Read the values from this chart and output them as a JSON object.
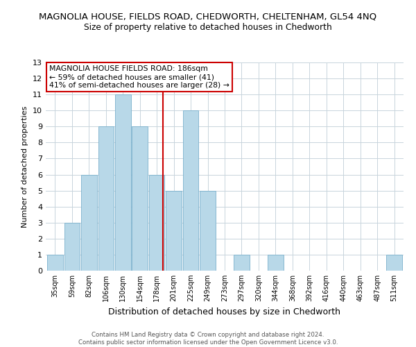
{
  "title": "MAGNOLIA HOUSE, FIELDS ROAD, CHEDWORTH, CHELTENHAM, GL54 4NQ",
  "subtitle": "Size of property relative to detached houses in Chedworth",
  "xlabel": "Distribution of detached houses by size in Chedworth",
  "ylabel": "Number of detached properties",
  "bin_labels": [
    "35sqm",
    "59sqm",
    "82sqm",
    "106sqm",
    "130sqm",
    "154sqm",
    "178sqm",
    "201sqm",
    "225sqm",
    "249sqm",
    "273sqm",
    "297sqm",
    "320sqm",
    "344sqm",
    "368sqm",
    "392sqm",
    "416sqm",
    "440sqm",
    "463sqm",
    "487sqm",
    "511sqm"
  ],
  "bar_counts": [
    1,
    3,
    6,
    9,
    11,
    9,
    6,
    5,
    10,
    5,
    0,
    1,
    0,
    1,
    0,
    0,
    0,
    0,
    0,
    0,
    1
  ],
  "bar_color": "#b8d8e8",
  "bar_edgecolor": "#7ab0cc",
  "vline_color": "#cc0000",
  "ylim": [
    0,
    13
  ],
  "yticks": [
    0,
    1,
    2,
    3,
    4,
    5,
    6,
    7,
    8,
    9,
    10,
    11,
    12,
    13
  ],
  "annotation_title": "MAGNOLIA HOUSE FIELDS ROAD: 186sqm",
  "annotation_line1": "← 59% of detached houses are smaller (41)",
  "annotation_line2": "41% of semi-detached houses are larger (28) →",
  "annotation_box_color": "#ffffff",
  "annotation_box_edgecolor": "#cc0000",
  "footer_line1": "Contains HM Land Registry data © Crown copyright and database right 2024.",
  "footer_line2": "Contains public sector information licensed under the Open Government Licence v3.0.",
  "background_color": "#ffffff",
  "grid_color": "#c8d4dc"
}
